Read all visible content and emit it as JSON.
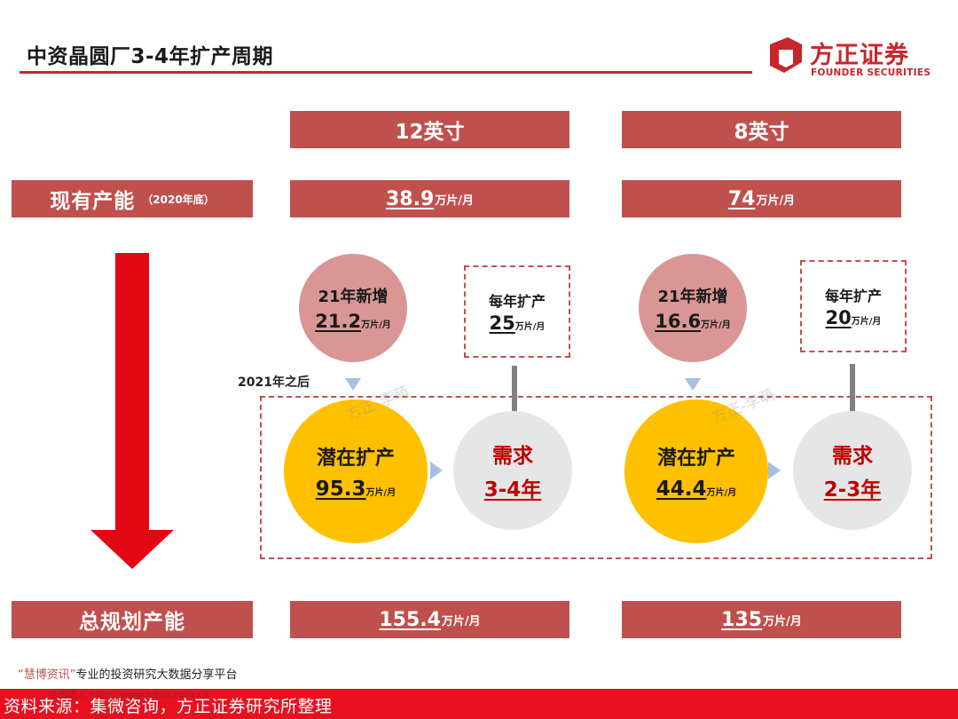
{
  "title": "中资晶圆厂3-4年扩产周期",
  "logo": {
    "cn": "方正证券",
    "en": "FOUNDER SECURITIES"
  },
  "columns": {
    "c12": "12英寸",
    "c8": "8英寸"
  },
  "current_capacity": {
    "label": "现有产能",
    "sub": "（2020年底）",
    "c12_value": "38.9",
    "c8_value": "74",
    "unit": "万片/月"
  },
  "after_label": "2021年之后",
  "c12": {
    "new_title": "21年新增",
    "new_value": "21.2",
    "annual_title": "每年扩产",
    "annual_value": "25",
    "potential_title": "潜在扩产",
    "potential_value": "95.3",
    "demand_title": "需求",
    "demand_value": "3-4年",
    "total_value": "155.4"
  },
  "c8": {
    "new_title": "21年新增",
    "new_value": "16.6",
    "annual_title": "每年扩产",
    "annual_value": "20",
    "potential_title": "潜在扩产",
    "potential_value": "44.4",
    "demand_title": "需求",
    "demand_value": "2-3年",
    "total_value": "135"
  },
  "total_capacity": {
    "label": "总规划产能"
  },
  "watermark": "方正-李萌",
  "platform": {
    "brand": "“慧博资讯”",
    "text": "专业的投资研究大数据分享平台"
  },
  "footer_ghost": "点击进入 http://www.hibor.com.cn",
  "source": "资料来源：集微咨询，方正证券研究所整理",
  "colors": {
    "accent_red": "#c0504d",
    "brand_red": "#c8262d",
    "yellow": "#ffc000",
    "pink": "#d99694",
    "grey": "#e6e6e6",
    "demand_red": "#c00000"
  }
}
